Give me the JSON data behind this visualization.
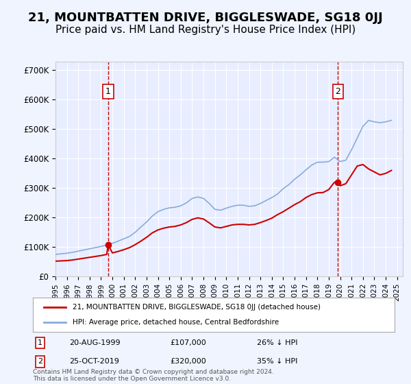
{
  "title": "21, MOUNTBATTEN DRIVE, BIGGLESWADE, SG18 0JJ",
  "subtitle": "Price paid vs. HM Land Registry's House Price Index (HPI)",
  "title_fontsize": 13,
  "subtitle_fontsize": 11,
  "background_color": "#f0f4ff",
  "plot_bg_color": "#e8eeff",
  "legend_line1": "21, MOUNTBATTEN DRIVE, BIGGLESWADE, SG18 0JJ (detached house)",
  "legend_line2": "HPI: Average price, detached house, Central Bedfordshire",
  "red_line_color": "#cc0000",
  "blue_line_color": "#88aadd",
  "marker1_label": "1",
  "marker2_label": "2",
  "marker1_date_label": "20-AUG-1999",
  "marker2_date_label": "25-OCT-2019",
  "marker1_price": "£107,000",
  "marker2_price": "£320,000",
  "marker1_hpi": "26% ↓ HPI",
  "marker2_hpi": "35% ↓ HPI",
  "marker1_x": 1999.63,
  "marker2_x": 2019.81,
  "marker1_y": 107000,
  "marker2_y": 320000,
  "ylabel_ticks": [
    "£0",
    "£100K",
    "£200K",
    "£300K",
    "£400K",
    "£500K",
    "£600K",
    "£700K"
  ],
  "ytick_vals": [
    0,
    100000,
    200000,
    300000,
    400000,
    500000,
    600000,
    700000
  ],
  "ylim": [
    0,
    730000
  ],
  "xlim_start": 1995.0,
  "xlim_end": 2025.5,
  "footer": "Contains HM Land Registry data © Crown copyright and database right 2024.\nThis data is licensed under the Open Government Licence v3.0.",
  "hpi_x": [
    1995.0,
    1995.5,
    1996.0,
    1996.5,
    1997.0,
    1997.5,
    1998.0,
    1998.5,
    1999.0,
    1999.5,
    2000.0,
    2000.5,
    2001.0,
    2001.5,
    2002.0,
    2002.5,
    2003.0,
    2003.5,
    2004.0,
    2004.5,
    2005.0,
    2005.5,
    2006.0,
    2006.5,
    2007.0,
    2007.5,
    2008.0,
    2008.5,
    2009.0,
    2009.5,
    2010.0,
    2010.5,
    2011.0,
    2011.5,
    2012.0,
    2012.5,
    2013.0,
    2013.5,
    2014.0,
    2014.5,
    2015.0,
    2015.5,
    2016.0,
    2016.5,
    2017.0,
    2017.5,
    2018.0,
    2018.5,
    2019.0,
    2019.5,
    2020.0,
    2020.5,
    2021.0,
    2021.5,
    2022.0,
    2022.5,
    2023.0,
    2023.5,
    2024.0,
    2024.5
  ],
  "hpi_y": [
    75000,
    77000,
    79000,
    82000,
    86000,
    90000,
    94000,
    98000,
    102000,
    107000,
    113000,
    120000,
    128000,
    136000,
    150000,
    168000,
    185000,
    205000,
    220000,
    228000,
    233000,
    235000,
    240000,
    250000,
    265000,
    270000,
    265000,
    248000,
    228000,
    225000,
    232000,
    238000,
    242000,
    242000,
    238000,
    240000,
    248000,
    258000,
    268000,
    280000,
    298000,
    312000,
    330000,
    345000,
    362000,
    378000,
    388000,
    388000,
    390000,
    405000,
    390000,
    395000,
    430000,
    470000,
    510000,
    530000,
    525000,
    522000,
    525000,
    530000
  ],
  "red_x": [
    1995.0,
    1995.5,
    1996.0,
    1996.5,
    1997.0,
    1997.5,
    1998.0,
    1998.5,
    1999.0,
    1999.5,
    1999.63,
    2000.0,
    2000.5,
    2001.0,
    2001.5,
    2002.0,
    2002.5,
    2003.0,
    2003.5,
    2004.0,
    2004.5,
    2005.0,
    2005.5,
    2006.0,
    2006.5,
    2007.0,
    2007.5,
    2008.0,
    2008.5,
    2009.0,
    2009.5,
    2010.0,
    2010.5,
    2011.0,
    2011.5,
    2012.0,
    2012.5,
    2013.0,
    2013.5,
    2014.0,
    2014.5,
    2015.0,
    2015.5,
    2016.0,
    2016.5,
    2017.0,
    2017.5,
    2018.0,
    2018.5,
    2019.0,
    2019.5,
    2019.81,
    2020.0,
    2020.5,
    2021.0,
    2021.5,
    2022.0,
    2022.5,
    2023.0,
    2023.5,
    2024.0,
    2024.5
  ],
  "red_y": [
    52000,
    53000,
    54000,
    56000,
    59000,
    62000,
    65000,
    68000,
    71000,
    75000,
    107000,
    80000,
    85000,
    91000,
    98000,
    108000,
    120000,
    133000,
    148000,
    158000,
    164000,
    168000,
    170000,
    175000,
    183000,
    194000,
    199000,
    195000,
    182000,
    168000,
    165000,
    170000,
    175000,
    177000,
    177000,
    175000,
    177000,
    183000,
    190000,
    198000,
    210000,
    220000,
    232000,
    244000,
    254000,
    268000,
    278000,
    284000,
    285000,
    295000,
    320000,
    320000,
    308000,
    315000,
    345000,
    375000,
    380000,
    365000,
    355000,
    345000,
    350000,
    360000
  ]
}
